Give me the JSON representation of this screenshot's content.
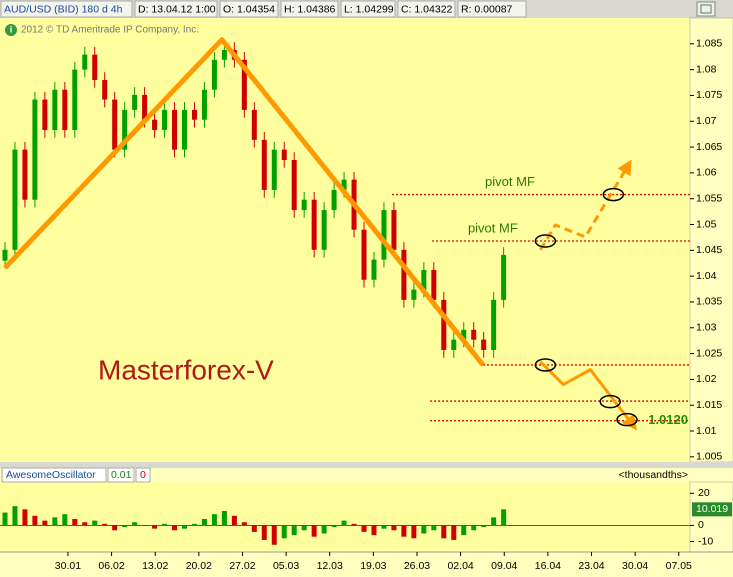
{
  "header": {
    "items": [
      "AUD/USD (BID) 180 d 4h",
      "D: 13.04.12 1:00",
      "O: 1.04354",
      "H: 1.04386",
      "L: 1.04299",
      "C: 1.04322",
      "R: 0.00087"
    ],
    "copyright": "2012 © TD Ameritrade IP Company, Inc."
  },
  "chart_data": [
    {
      "type": "candlestick",
      "watermark": "Masterforex-V",
      "up_color": "#00a000",
      "down_color": "#d00000",
      "x": [
        -10.1,
        -8.5,
        -6.9,
        -5.3,
        -3.7,
        -2.1,
        -0.5,
        1.1,
        2.7,
        4.3,
        5.9,
        7.5,
        9.1,
        10.7,
        12.3,
        13.9,
        15.5,
        17.1,
        18.7,
        20.3,
        21.9,
        23.5,
        25.1,
        26.7,
        28.3,
        29.9,
        31.5,
        33.1,
        34.7,
        36.3,
        37.9,
        39.5,
        41.1,
        42.7,
        44.3,
        45.9,
        47.5,
        49.1,
        50.7,
        52.3,
        53.9,
        55.5,
        57.1,
        58.7,
        60.3,
        61.9,
        63.5,
        65.1,
        66.7,
        68.3,
        69.9
      ],
      "open": [
        1.043,
        1.0451,
        1.0645,
        1.0548,
        1.0742,
        1.0683,
        1.0761,
        1.0683,
        1.08,
        1.0829,
        1.078,
        1.0742,
        1.0645,
        1.0722,
        1.0751,
        1.0703,
        1.0683,
        1.0722,
        1.0645,
        1.0722,
        1.0703,
        1.0761,
        1.0819,
        1.0838,
        1.0819,
        1.0722,
        1.0664,
        1.0567,
        1.0645,
        1.0625,
        1.0528,
        1.0548,
        1.0451,
        1.0528,
        1.0567,
        1.0587,
        1.049,
        1.0393,
        1.0432,
        1.0528,
        1.0451,
        1.0354,
        1.0374,
        1.0412,
        1.0354,
        1.0257,
        1.0277,
        1.0296,
        1.0277,
        1.0257,
        1.0354
      ],
      "high": [
        1.0466,
        1.066,
        1.066,
        1.0757,
        1.0757,
        1.0776,
        1.0776,
        1.0815,
        1.0844,
        1.0844,
        1.0795,
        1.0757,
        1.0737,
        1.0766,
        1.0766,
        1.0718,
        1.0737,
        1.0737,
        1.0737,
        1.0737,
        1.0776,
        1.0834,
        1.0853,
        1.0853,
        1.0834,
        1.0737,
        1.0679,
        1.066,
        1.066,
        1.064,
        1.0563,
        1.0563,
        1.0543,
        1.0582,
        1.0602,
        1.0602,
        1.0505,
        1.0447,
        1.0543,
        1.0543,
        1.0466,
        1.0389,
        1.0427,
        1.0427,
        1.0369,
        1.0292,
        1.0311,
        1.0311,
        1.0292,
        1.0369,
        1.0456
      ],
      "low": [
        1.0415,
        1.0436,
        1.0533,
        1.0533,
        1.0668,
        1.0668,
        1.0668,
        1.0668,
        1.0785,
        1.0765,
        1.0727,
        1.063,
        1.063,
        1.0707,
        1.0688,
        1.0668,
        1.0668,
        1.063,
        1.063,
        1.0688,
        1.0688,
        1.0746,
        1.0804,
        1.0804,
        1.0707,
        1.0649,
        1.0552,
        1.0552,
        1.061,
        1.0513,
        1.0513,
        1.0436,
        1.0436,
        1.0513,
        1.0552,
        1.0475,
        1.0378,
        1.0378,
        1.0417,
        1.0436,
        1.0339,
        1.0339,
        1.0359,
        1.0339,
        1.0242,
        1.0242,
        1.0262,
        1.0262,
        1.0242,
        1.0242,
        1.0339
      ],
      "close": [
        1.0451,
        1.0645,
        1.0548,
        1.0742,
        1.0683,
        1.0761,
        1.0683,
        1.08,
        1.0829,
        1.078,
        1.0742,
        1.0645,
        1.0722,
        1.0751,
        1.0703,
        1.0683,
        1.0722,
        1.0645,
        1.0722,
        1.0703,
        1.0761,
        1.0819,
        1.0838,
        1.0819,
        1.0722,
        1.0664,
        1.0567,
        1.0645,
        1.0625,
        1.0528,
        1.0548,
        1.0451,
        1.0528,
        1.0567,
        1.0587,
        1.049,
        1.0393,
        1.0432,
        1.0528,
        1.0451,
        1.0354,
        1.0374,
        1.0412,
        1.0354,
        1.0257,
        1.0277,
        1.0296,
        1.0277,
        1.0257,
        1.0354,
        1.0441
      ],
      "xlim": [
        -10.9,
        99.8
      ],
      "ylim": [
        1.004,
        1.09
      ],
      "yticks": [
        1.005,
        1.01,
        1.015,
        1.02,
        1.025,
        1.03,
        1.035,
        1.04,
        1.045,
        1.05,
        1.055,
        1.06,
        1.065,
        1.07,
        1.075,
        1.08,
        1.085
      ],
      "levels": [
        {
          "value": 1.0558,
          "x_start": 52.0,
          "label": "pivot MF",
          "color": "#e00000"
        },
        {
          "value": 1.0468,
          "x_start": 58.4,
          "label": "pivot MF",
          "color": "#e00000"
        },
        {
          "value": 1.0228,
          "x_start": 66.6,
          "color": "#e00000"
        },
        {
          "value": 1.0158,
          "x_start": 58.1,
          "color": "#e00000"
        },
        {
          "value": 1.012,
          "x_start": 58.1,
          "label": "1.0120",
          "color": "#e00000"
        }
      ],
      "paths": [
        {
          "x": [
            -10.1,
            24.7,
            66.6
          ],
          "y": [
            1.0416,
            1.0858,
            1.0228
          ],
          "color": "#ff9900",
          "dashed": false,
          "arrow": false
        },
        {
          "x": [
            75.8,
            78.2,
            83.0,
            90.2
          ],
          "y": [
            1.0451,
            1.0499,
            1.0476,
            1.0621
          ],
          "color": "#ff9900",
          "dashed": true,
          "arrow": true
        },
        {
          "x": [
            75.8,
            79.5,
            83.8,
            91.0
          ],
          "y": [
            1.0234,
            1.019,
            1.0219,
            1.0106
          ],
          "color": "#ff9900",
          "dashed": false,
          "arrow": true
        }
      ],
      "markers": {
        "x": [
          87.5,
          76.6,
          76.6,
          87.0,
          89.7
        ],
        "y": [
          1.0558,
          1.0468,
          1.0228,
          1.0157,
          1.0122
        ]
      }
    },
    {
      "type": "bar",
      "title": "AwesomeOscillator",
      "params": [
        "0.01",
        "0"
      ],
      "unit": "<thousandths>",
      "up_color": "#00a000",
      "down_color": "#d00000",
      "x": [
        -10.1,
        -8.5,
        -6.9,
        -5.3,
        -3.7,
        -2.1,
        -0.5,
        1.1,
        2.7,
        4.3,
        5.9,
        7.5,
        9.1,
        10.7,
        12.3,
        13.9,
        15.5,
        17.1,
        18.7,
        20.3,
        21.9,
        23.5,
        25.1,
        26.7,
        28.3,
        29.9,
        31.5,
        33.1,
        34.7,
        36.3,
        37.9,
        39.5,
        41.1,
        42.7,
        44.3,
        45.9,
        47.5,
        49.1,
        50.7,
        52.3,
        53.9,
        55.5,
        57.1,
        58.7,
        60.3,
        61.9,
        63.5,
        65.1,
        66.7,
        68.3,
        69.9
      ],
      "values": [
        8,
        12,
        10,
        6,
        3,
        5,
        7,
        4,
        2,
        3,
        1,
        -3,
        -1,
        2,
        0,
        -2,
        1,
        -3,
        -2,
        1,
        4,
        7,
        9,
        6,
        2,
        -4,
        -9,
        -12,
        -8,
        -6,
        -3,
        -7,
        -5,
        -1,
        3,
        1,
        -4,
        -6,
        -2,
        -3,
        -7,
        -8,
        -5,
        -3,
        -8,
        -9,
        -6,
        -3,
        -1,
        5,
        10.019
      ],
      "xlim": [
        -10.9,
        99.8
      ],
      "ylim": [
        -16.5,
        27
      ],
      "yticks": [
        20,
        0,
        -10
      ],
      "xticks": [
        {
          "value": 0,
          "label": "30.01"
        },
        {
          "value": 7,
          "label": "06.02"
        },
        {
          "value": 14,
          "label": "13.02"
        },
        {
          "value": 21,
          "label": "20.02"
        },
        {
          "value": 28,
          "label": "27.02"
        },
        {
          "value": 35,
          "label": "05.03"
        },
        {
          "value": 42,
          "label": "12.03"
        },
        {
          "value": 49,
          "label": "19.03"
        },
        {
          "value": 56,
          "label": "26.03"
        },
        {
          "value": 63,
          "label": "02.04"
        },
        {
          "value": 70,
          "label": "09.04"
        },
        {
          "value": 77,
          "label": "16.04"
        },
        {
          "value": 84,
          "label": "23.04"
        },
        {
          "value": 91,
          "label": "30.04"
        },
        {
          "value": 98,
          "label": "07.05"
        }
      ]
    }
  ]
}
